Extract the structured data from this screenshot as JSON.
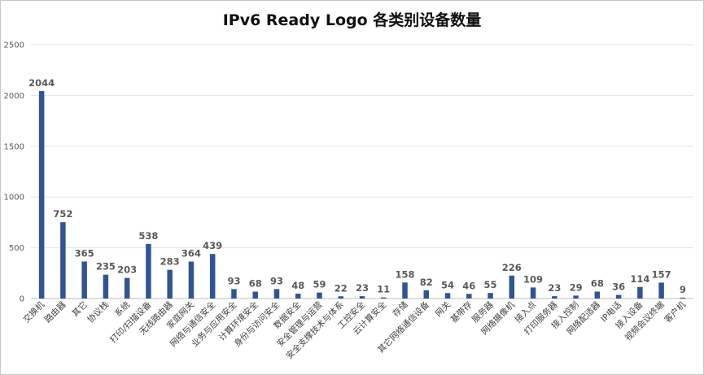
{
  "chart_data": {
    "type": "bar",
    "title": "IPv6 Ready Logo 各类别设备数量",
    "xlabel": "",
    "ylabel": "",
    "ylim": [
      0,
      2500
    ],
    "yticks": [
      0,
      500,
      1000,
      1500,
      2000,
      2500
    ],
    "grid": true,
    "legend": "none",
    "bar_color": "#2f5597",
    "categories": [
      "交换机",
      "路由器",
      "其它",
      "协议栈",
      "系统",
      "打印/扫描设备",
      "无线路由器",
      "家庭网关",
      "网络与通信安全",
      "业务与应用安全",
      "计算环境安全",
      "身份与访问安全",
      "数据安全",
      "安全管理与运营",
      "安全支撑技术与体系",
      "工控安全",
      "云计算安全",
      "存储",
      "其它网络通信设备",
      "网关",
      "基带存",
      "服务器",
      "网络摄像机",
      "接入点",
      "打印服务器",
      "接入控制",
      "网络配适器",
      "IP电话",
      "接入设备",
      "视频会议终端",
      "客户机"
    ],
    "values": [
      2044,
      752,
      365,
      235,
      203,
      538,
      283,
      364,
      439,
      93,
      68,
      93,
      48,
      59,
      22,
      23,
      11,
      158,
      82,
      54,
      46,
      55,
      226,
      109,
      23,
      29,
      68,
      36,
      114,
      157,
      9
    ]
  }
}
